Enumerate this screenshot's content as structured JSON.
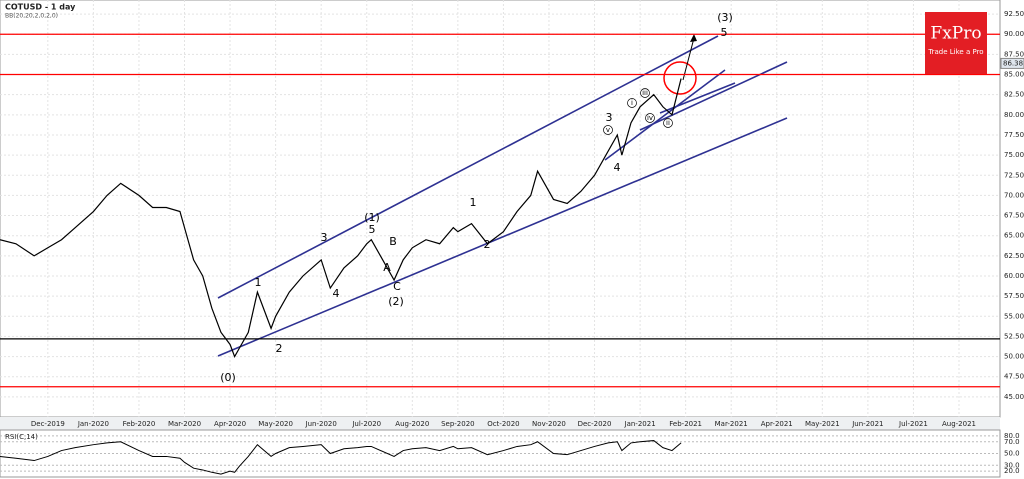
{
  "chart_data": {
    "type": "line",
    "title": "COTUSD - 1 day",
    "subtitle": "BB(20,20,2,0,2,0)",
    "logo": {
      "brand": "FxPro",
      "tagline": "Trade Like a Pro"
    },
    "xlim": [
      -1.05,
      20.9
    ],
    "xticks": [
      {
        "value": 0,
        "label": "Dec-2019"
      },
      {
        "value": 1,
        "label": "Jan-2020"
      },
      {
        "value": 2,
        "label": "Feb-2020"
      },
      {
        "value": 3,
        "label": "Mar-2020"
      },
      {
        "value": 4,
        "label": "Apr-2020"
      },
      {
        "value": 5,
        "label": "May-2020"
      },
      {
        "value": 6,
        "label": "Jun-2020"
      },
      {
        "value": 7,
        "label": "Jul-2020"
      },
      {
        "value": 8,
        "label": "Aug-2020"
      },
      {
        "value": 9,
        "label": "Sep-2020"
      },
      {
        "value": 10,
        "label": "Oct-2020"
      },
      {
        "value": 11,
        "label": "Nov-2020"
      },
      {
        "value": 12,
        "label": "Dec-2020"
      },
      {
        "value": 13,
        "label": "Jan-2021"
      },
      {
        "value": 14,
        "label": "Feb-2021"
      },
      {
        "value": 15,
        "label": "Mar-2021"
      },
      {
        "value": 16,
        "label": "Apr-2021"
      },
      {
        "value": 17,
        "label": "May-2021"
      },
      {
        "value": 18,
        "label": "Jun-2021"
      },
      {
        "value": 19,
        "label": "Jul-2021"
      },
      {
        "value": 20,
        "label": "Aug-2021"
      }
    ],
    "ylim": [
      42.5,
      94.25
    ],
    "yticks": [
      {
        "value": 45,
        "label": "45.00"
      },
      {
        "value": 47.5,
        "label": "47.50"
      },
      {
        "value": 50,
        "label": "50.00"
      },
      {
        "value": 52.5,
        "label": "52.50"
      },
      {
        "value": 55,
        "label": "55.00"
      },
      {
        "value": 57.5,
        "label": "57.50"
      },
      {
        "value": 60,
        "label": "60.00"
      },
      {
        "value": 62.5,
        "label": "62.50"
      },
      {
        "value": 65,
        "label": "65.00"
      },
      {
        "value": 67.5,
        "label": "67.50"
      },
      {
        "value": 70,
        "label": "70.00"
      },
      {
        "value": 72.5,
        "label": "72.50"
      },
      {
        "value": 75,
        "label": "75.00"
      },
      {
        "value": 77.5,
        "label": "77.50"
      },
      {
        "value": 80,
        "label": "80.00"
      },
      {
        "value": 82.5,
        "label": "82.50"
      },
      {
        "value": 85,
        "label": "85.00"
      },
      {
        "value": 87.5,
        "label": "87.50"
      },
      {
        "value": 90,
        "label": "90.00"
      },
      {
        "value": 92.5,
        "label": "92.50"
      }
    ],
    "grid": true,
    "last_price": 86.38,
    "hlines": [
      {
        "value": 90,
        "color": "#ff0000"
      },
      {
        "value": 85,
        "color": "#ff0000"
      },
      {
        "value": 52.2,
        "color": "#000000"
      },
      {
        "value": 46.25,
        "color": "#ff0000"
      }
    ],
    "x": [
      -1.05,
      -0.7,
      -0.3,
      0,
      0.3,
      0.6,
      1,
      1.3,
      1.6,
      2,
      2.3,
      2.6,
      2.9,
      3,
      3.2,
      3.4,
      3.6,
      3.8,
      4,
      4.1,
      4.2,
      4.4,
      4.6,
      4.9,
      5,
      5.3,
      5.6,
      6,
      6.2,
      6.5,
      6.8,
      7,
      7.1,
      7.6,
      7.8,
      8,
      8.3,
      8.6,
      8.9,
      9,
      9.3,
      9.65,
      10,
      10.3,
      10.6,
      10.75,
      11.1,
      11.4,
      11.7,
      12,
      12.3,
      12.5,
      12.6,
      12.8,
      13,
      13.3,
      13.5,
      13.7,
      13.9
    ],
    "series": [
      {
        "name": "COTUSD",
        "color": "#000000",
        "values": [
          64.5,
          64,
          62.5,
          63.5,
          64.5,
          66,
          68,
          70,
          71.5,
          70,
          68.5,
          68.5,
          68,
          66,
          62,
          60,
          56,
          53,
          51.5,
          50,
          51,
          53,
          58,
          53.5,
          55,
          58,
          60,
          62,
          58.5,
          61,
          62.5,
          64,
          64.5,
          59.5,
          62,
          63.5,
          64.5,
          64,
          66,
          65.5,
          66.5,
          64,
          65.5,
          68,
          70,
          73,
          69.5,
          69,
          70.5,
          72.5,
          75.5,
          77.5,
          75,
          79,
          81,
          82.5,
          81,
          80,
          84.5
        ]
      }
    ],
    "annotations": [
      "(0)",
      "1",
      "2",
      "3",
      "4",
      "5",
      "(1)",
      "A",
      "B",
      "C",
      "(2)",
      "1",
      "2",
      "3",
      "4",
      "5",
      "(3)",
      "i",
      "ii",
      "iii",
      "iv",
      "v"
    ],
    "rsi": {
      "label": "RSI(C,14)",
      "color": "#000000",
      "ylim": [
        10,
        90
      ],
      "yticks": [
        {
          "value": 80,
          "label": "80.0"
        },
        {
          "value": 70,
          "label": "70.0"
        },
        {
          "value": 50,
          "label": "50.0"
        },
        {
          "value": 30,
          "label": "30.0"
        },
        {
          "value": 20,
          "label": "20.0"
        }
      ],
      "values": [
        45,
        42,
        38,
        45,
        55,
        60,
        65,
        68,
        70,
        55,
        45,
        45,
        42,
        35,
        25,
        22,
        18,
        15,
        20,
        18,
        28,
        45,
        65,
        45,
        50,
        60,
        62,
        65,
        50,
        58,
        60,
        62,
        62,
        45,
        55,
        58,
        60,
        55,
        62,
        58,
        60,
        48,
        55,
        62,
        65,
        70,
        50,
        48,
        55,
        62,
        68,
        70,
        55,
        68,
        70,
        72,
        60,
        55,
        68
      ]
    }
  }
}
